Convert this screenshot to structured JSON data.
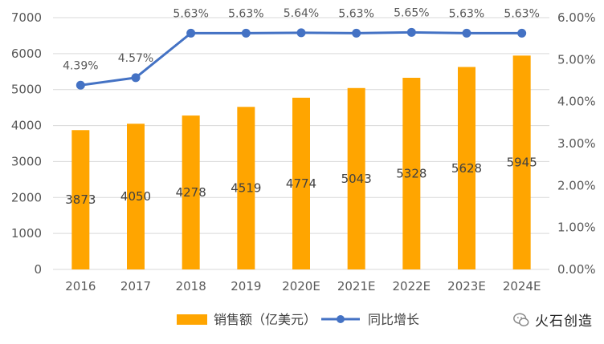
{
  "chart_data": {
    "type": "bar+line",
    "categories": [
      "2016",
      "2017",
      "2018",
      "2019",
      "2020E",
      "2021E",
      "2022E",
      "2023E",
      "2024E"
    ],
    "series": [
      {
        "name": "销售额（亿美元）",
        "type": "bar",
        "axis": "left",
        "color": "#FFA500",
        "values": [
          3873,
          4050,
          4278,
          4519,
          4774,
          5043,
          5328,
          5628,
          5945
        ],
        "labels": [
          "3873",
          "4050",
          "4278",
          "4519",
          "4774",
          "5043",
          "5328",
          "5628",
          "5945"
        ]
      },
      {
        "name": "同比增长",
        "type": "line",
        "axis": "right",
        "color": "#4472C4",
        "values": [
          4.39,
          4.57,
          5.63,
          5.63,
          5.64,
          5.63,
          5.65,
          5.63,
          5.63
        ],
        "labels": [
          "4.39%",
          "4.57%",
          "5.63%",
          "5.63%",
          "5.64%",
          "5.63%",
          "5.65%",
          "5.63%",
          "5.63%"
        ]
      }
    ],
    "y_left": {
      "ylim": [
        0,
        7000
      ],
      "ticks": [
        "0",
        "1000",
        "2000",
        "3000",
        "4000",
        "5000",
        "6000",
        "7000"
      ]
    },
    "y_right": {
      "ylim": [
        0,
        6
      ],
      "ticks": [
        "0.00%",
        "1.00%",
        "2.00%",
        "3.00%",
        "4.00%",
        "5.00%",
        "6.00%"
      ]
    },
    "grid": true,
    "legend": "bottom-center"
  },
  "watermark": {
    "text": "火石创造"
  }
}
